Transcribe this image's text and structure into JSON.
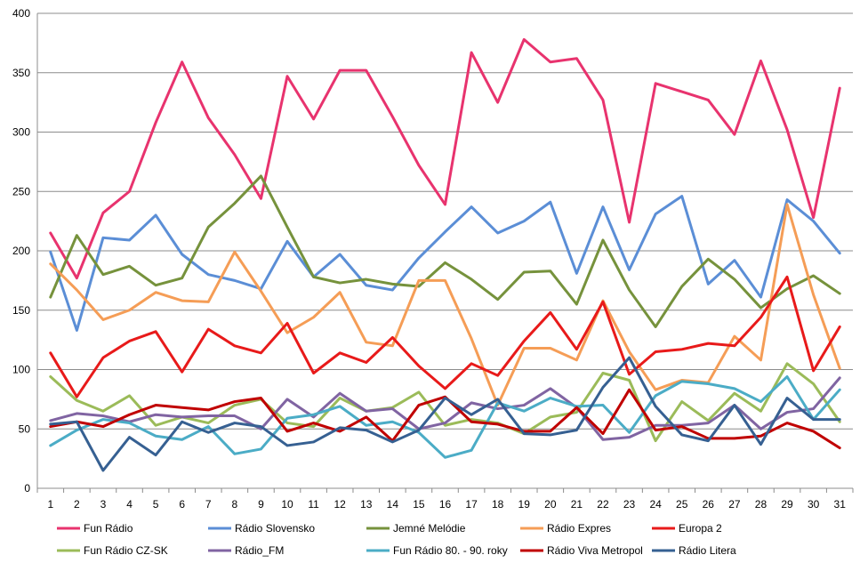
{
  "chart_data": {
    "type": "line",
    "title": "",
    "xlabel": "",
    "ylabel": "",
    "ylim": [
      0,
      400
    ],
    "yticks": [
      0,
      50,
      100,
      150,
      200,
      250,
      300,
      350,
      400
    ],
    "grid": "horizontal",
    "legend_position": "bottom",
    "categories": [
      "1",
      "2",
      "3",
      "4",
      "5",
      "6",
      "7",
      "8",
      "9",
      "10",
      "11",
      "12",
      "13",
      "14",
      "15",
      "16",
      "17",
      "18",
      "19",
      "20",
      "21",
      "22",
      "23",
      "24",
      "25",
      "26",
      "27",
      "28",
      "29",
      "30",
      "31"
    ],
    "series": [
      {
        "name": "Fun Rádio",
        "color": "#e8336e",
        "values": [
          215,
          177,
          232,
          250,
          308,
          359,
          312,
          281,
          244,
          347,
          311,
          352,
          352,
          313,
          272,
          239,
          367,
          325,
          378,
          359,
          362,
          327,
          224,
          341,
          334,
          327,
          298,
          360,
          302,
          228,
          337
        ]
      },
      {
        "name": "Rádio Slovensko",
        "color": "#5b8ed6",
        "values": [
          199,
          133,
          211,
          209,
          230,
          197,
          180,
          175,
          168,
          208,
          178,
          197,
          171,
          167,
          194,
          216,
          237,
          215,
          225,
          241,
          181,
          237,
          184,
          231,
          246,
          172,
          192,
          161,
          243,
          225,
          198
        ]
      },
      {
        "name": "Jemné Melódie",
        "color": "#76923c",
        "values": [
          161,
          213,
          180,
          187,
          171,
          177,
          220,
          240,
          263,
          220,
          178,
          173,
          176,
          172,
          170,
          190,
          176,
          159,
          182,
          183,
          155,
          209,
          167,
          136,
          170,
          193,
          176,
          152,
          168,
          179,
          164
        ]
      },
      {
        "name": "Rádio Expres",
        "color": "#f59d56",
        "values": [
          189,
          167,
          142,
          150,
          165,
          158,
          157,
          199,
          166,
          131,
          144,
          165,
          123,
          120,
          175,
          175,
          126,
          70,
          118,
          118,
          108,
          158,
          115,
          83,
          91,
          89,
          128,
          108,
          239,
          163,
          101
        ]
      },
      {
        "name": "Europa 2",
        "color": "#e81a1a",
        "values": [
          114,
          77,
          110,
          124,
          132,
          98,
          134,
          120,
          114,
          139,
          97,
          114,
          106,
          127,
          103,
          84,
          105,
          95,
          124,
          148,
          117,
          157,
          96,
          115,
          117,
          122,
          120,
          144,
          178,
          99,
          136
        ]
      },
      {
        "name": "Fun Rádio CZ-SK",
        "color": "#9bbb59",
        "values": [
          94,
          74,
          65,
          78,
          53,
          60,
          55,
          70,
          75,
          55,
          52,
          76,
          65,
          68,
          81,
          53,
          58,
          55,
          46,
          60,
          64,
          97,
          91,
          40,
          73,
          57,
          80,
          65,
          105,
          88,
          56
        ]
      },
      {
        "name": "Rádio_FM",
        "color": "#8064a2",
        "values": [
          57,
          63,
          61,
          56,
          62,
          60,
          61,
          61,
          50,
          75,
          60,
          80,
          65,
          67,
          50,
          55,
          72,
          67,
          70,
          84,
          68,
          41,
          43,
          53,
          53,
          55,
          70,
          50,
          64,
          67,
          93
        ]
      },
      {
        "name": "Fun Rádio 80. - 90. roky",
        "color": "#4bacc6",
        "values": [
          36,
          49,
          58,
          55,
          44,
          41,
          52,
          29,
          33,
          59,
          62,
          69,
          53,
          56,
          47,
          26,
          32,
          72,
          65,
          76,
          69,
          70,
          47,
          78,
          90,
          88,
          84,
          73,
          94,
          58,
          83
        ]
      },
      {
        "name": "Rádio Viva Metropol",
        "color": "#c00000",
        "values": [
          52,
          56,
          52,
          62,
          70,
          68,
          66,
          73,
          76,
          48,
          55,
          48,
          60,
          40,
          70,
          77,
          56,
          54,
          48,
          48,
          68,
          46,
          83,
          49,
          52,
          42,
          42,
          44,
          55,
          48,
          34
        ]
      },
      {
        "name": "Rádio Litera",
        "color": "#366092",
        "values": [
          54,
          56,
          15,
          43,
          28,
          56,
          47,
          55,
          52,
          36,
          39,
          51,
          49,
          39,
          49,
          76,
          62,
          75,
          46,
          45,
          49,
          85,
          110,
          69,
          45,
          40,
          70,
          37,
          76,
          58,
          58
        ]
      }
    ]
  }
}
